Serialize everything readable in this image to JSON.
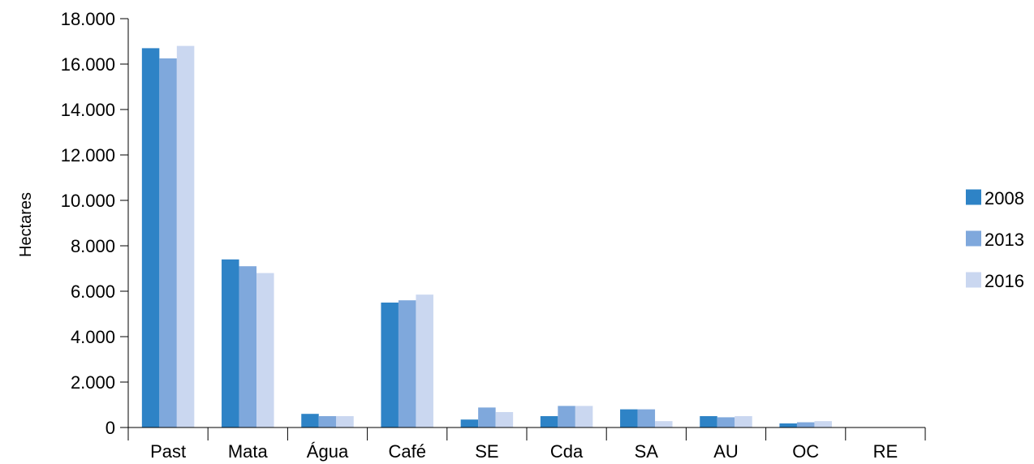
{
  "chart_data": {
    "type": "bar",
    "title": "",
    "xlabel": "",
    "ylabel": "Hectares",
    "ylim": [
      0,
      18000
    ],
    "y_ticks": [
      0,
      2000,
      4000,
      6000,
      8000,
      10000,
      12000,
      14000,
      16000,
      18000
    ],
    "y_tick_labels": [
      "0",
      "2.000",
      "4.000",
      "6.000",
      "8.000",
      "10.000",
      "12.000",
      "14.000",
      "16.000",
      "18.000"
    ],
    "categories": [
      "Past",
      "Mata",
      "Água",
      "Café",
      "SE",
      "Cda",
      "SA",
      "AU",
      "OC",
      "RE"
    ],
    "series": [
      {
        "name": "2008",
        "color": "#2E83C6",
        "values": [
          16700,
          7400,
          600,
          5500,
          350,
          500,
          800,
          500,
          180,
          0
        ]
      },
      {
        "name": "2013",
        "color": "#7FA8DC",
        "values": [
          16250,
          7100,
          500,
          5600,
          880,
          950,
          800,
          450,
          230,
          0
        ]
      },
      {
        "name": "2016",
        "color": "#CAD7F0",
        "values": [
          16800,
          6800,
          500,
          5850,
          680,
          950,
          280,
          500,
          280,
          0
        ]
      }
    ],
    "grid": false,
    "legend_position": "right"
  }
}
